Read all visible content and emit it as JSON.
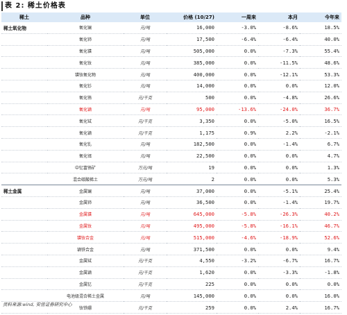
{
  "caption": "表 2:  稀土价格表",
  "headers": {
    "category": "稀土",
    "product": "品种",
    "unit": "单位",
    "price": "价格 (10/27)",
    "week": "一周来",
    "month": "本月",
    "ytd": "今年来"
  },
  "rows": [
    {
      "category": "稀土氧化物",
      "product": "氧化镧",
      "unit": "元/吨",
      "price": "16,000",
      "week": "-3.0%",
      "month": "-8.6%",
      "ytd": "18.5%",
      "red": false
    },
    {
      "category": "",
      "product": "氧化铈",
      "unit": "元/吨",
      "price": "17,500",
      "week": "-6.4%",
      "month": "-6.4%",
      "ytd": "40.0%",
      "red": false
    },
    {
      "category": "",
      "product": "氧化镨",
      "unit": "元/吨",
      "price": "505,000",
      "week": "0.0%",
      "month": "-7.3%",
      "ytd": "55.4%",
      "red": false
    },
    {
      "category": "",
      "product": "氧化钕",
      "unit": "元/吨",
      "price": "385,000",
      "week": "0.0%",
      "month": "-11.5%",
      "ytd": "48.6%",
      "red": false
    },
    {
      "category": "",
      "product": "镨钕氧化物",
      "unit": "元/吨",
      "price": "400,000",
      "week": "0.0%",
      "month": "-12.1%",
      "ytd": "53.3%",
      "red": false
    },
    {
      "category": "",
      "product": "氧化钐",
      "unit": "元/吨",
      "price": "14,000",
      "week": "0.0%",
      "month": "0.0%",
      "ytd": "12.0%",
      "red": false
    },
    {
      "category": "",
      "product": "氧化铕",
      "unit": "元/千克",
      "price": "500",
      "week": "0.0%",
      "month": "-4.8%",
      "ytd": "26.6%",
      "red": false
    },
    {
      "category": "",
      "product": "氧化镝",
      "unit": "元/吨",
      "price": "95,000",
      "week": "-13.6%",
      "month": "-24.0%",
      "ytd": "36.7%",
      "red": true
    },
    {
      "category": "",
      "product": "氧化铽",
      "unit": "元/千克",
      "price": "3,350",
      "week": "0.0%",
      "month": "-5.0%",
      "ytd": "16.5%",
      "red": false
    },
    {
      "category": "",
      "product": "氧化镝",
      "unit": "元/千克",
      "price": "1,175",
      "week": "0.9%",
      "month": "2.2%",
      "ytd": "-2.1%",
      "red": false
    },
    {
      "category": "",
      "product": "氧化钆",
      "unit": "元/吨",
      "price": "182,500",
      "week": "0.0%",
      "month": "-1.4%",
      "ytd": "6.7%",
      "red": false
    },
    {
      "category": "",
      "product": "氧化铒",
      "unit": "元/吨",
      "price": "22,500",
      "week": "0.0%",
      "month": "0.0%",
      "ytd": "4.7%",
      "red": false
    },
    {
      "category": "",
      "product": "中钇富铕矿",
      "unit": "万元/吨",
      "price": "19",
      "week": "0.0%",
      "month": "0.0%",
      "ytd": "1.3%",
      "red": false
    },
    {
      "category": "",
      "product": "混合碳酸稀土",
      "unit": "万元/吨",
      "price": "2",
      "week": "0.0%",
      "month": "0.0%",
      "ytd": "5.3%",
      "red": false
    },
    {
      "category": "稀土金属",
      "product": "金属镧",
      "unit": "元/吨",
      "price": "37,000",
      "week": "0.0%",
      "month": "-5.1%",
      "ytd": "25.4%",
      "red": false,
      "sep": true
    },
    {
      "category": "",
      "product": "金属铈",
      "unit": "元/吨",
      "price": "36,500",
      "week": "0.0%",
      "month": "-1.4%",
      "ytd": "19.7%",
      "red": false
    },
    {
      "category": "",
      "product": "金属镨",
      "unit": "元/吨",
      "price": "645,000",
      "week": "-5.8%",
      "month": "-26.3%",
      "ytd": "40.2%",
      "red": true
    },
    {
      "category": "",
      "product": "金属钕",
      "unit": "元/吨",
      "price": "495,000",
      "week": "-5.8%",
      "month": "-16.1%",
      "ytd": "46.7%",
      "red": true
    },
    {
      "category": "",
      "product": "镨钕合金",
      "unit": "元/吨",
      "price": "515,000",
      "week": "-4.6%",
      "month": "-18.9%",
      "ytd": "52.6%",
      "red": true
    },
    {
      "category": "",
      "product": "镝铁合金",
      "unit": "元/吨",
      "price": "371,500",
      "week": "0.0%",
      "month": "0.0%",
      "ytd": "9.4%",
      "red": false
    },
    {
      "category": "",
      "product": "金属铽",
      "unit": "元/千克",
      "price": "4,550",
      "week": "-3.2%",
      "month": "-6.7%",
      "ytd": "16.7%",
      "red": false
    },
    {
      "category": "",
      "product": "金属镝",
      "unit": "元/千克",
      "price": "1,620",
      "week": "0.0%",
      "month": "-3.3%",
      "ytd": "-1.8%",
      "red": false
    },
    {
      "category": "",
      "product": "金属钇",
      "unit": "元/千克",
      "price": "225",
      "week": "0.0%",
      "month": "0.0%",
      "ytd": "0.0%",
      "red": false
    },
    {
      "category": "",
      "product": "电池级混合稀土金属",
      "unit": "元/吨",
      "price": "145,000",
      "week": "0.0%",
      "month": "0.0%",
      "ytd": "16.0%",
      "red": false
    },
    {
      "category": "",
      "product": "钕铁硼",
      "unit": "元/千克",
      "price": "259",
      "week": "0.0%",
      "month": "2.4%",
      "ytd": "16.7%",
      "red": false
    }
  ],
  "source": "资料来源:wind, 安信证券研究中心"
}
